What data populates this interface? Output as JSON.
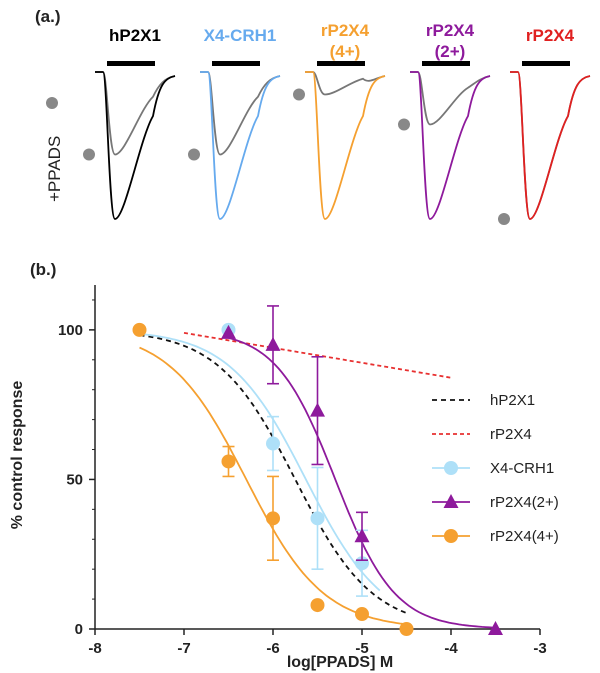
{
  "panel_a": {
    "label": "(a.)",
    "side_label": "+PPADS",
    "trace_colors": {
      "control": "#000000",
      "ppads": "#777777"
    },
    "traces": [
      {
        "title": "hP2X1",
        "color": "#000000",
        "peak": 0.98,
        "ppads_peak": 0.55
      },
      {
        "title": "X4-CRH1",
        "color": "#66aaee",
        "peak": 0.98,
        "ppads_peak": 0.55
      },
      {
        "title": "rP2X4\n(4+)",
        "title_lines": [
          "rP2X4",
          "(4+)"
        ],
        "color": "#f5a030",
        "peak": 0.98,
        "ppads_peak": 0.15
      },
      {
        "title": "rP2X4\n(2+)",
        "title_lines": [
          "rP2X4",
          "(2+)"
        ],
        "color": "#8e1a9c",
        "peak": 0.98,
        "ppads_peak": 0.35
      },
      {
        "title": "rP2X4",
        "color": "#e02020",
        "peak": 0.98,
        "ppads_peak": 0.98
      }
    ]
  },
  "chart_data": {
    "type": "scatter",
    "panel_label": "(b.)",
    "xlabel": "log[PPADS] M",
    "ylabel": "% control response",
    "xlim": [
      -8,
      -3
    ],
    "ylim": [
      0,
      115
    ],
    "x_ticks": [
      -8,
      -7,
      -6,
      -5,
      -4,
      -3
    ],
    "y_ticks": [
      0,
      50,
      100
    ],
    "grid": false,
    "legend_position": "right",
    "series": [
      {
        "name": "hP2X1",
        "color": "#111111",
        "style": "dashed",
        "marker": "none",
        "fit": {
          "top": 100,
          "bottom": 0,
          "log_ic50": -5.75,
          "hill": 1.0,
          "x_range": [
            -7.5,
            -4.5
          ]
        }
      },
      {
        "name": "rP2X4",
        "color": "#e83030",
        "style": "dotted",
        "marker": "none",
        "line": {
          "x": [
            -7,
            -4
          ],
          "y": [
            99,
            84
          ]
        }
      },
      {
        "name": "X4-CRH1",
        "color": "#aee0f8",
        "style": "solid",
        "marker": "circle",
        "x": [
          -6.5,
          -6,
          -5.5,
          -5
        ],
        "y": [
          100,
          62,
          37,
          22
        ],
        "err": [
          0,
          9,
          17,
          11
        ],
        "fit": {
          "top": 100,
          "bottom": 0,
          "log_ic50": -5.63,
          "hill": 1.0,
          "x_range": [
            -7.5,
            -4.8
          ]
        }
      },
      {
        "name": "rP2X4(2+)",
        "color": "#8e1a9c",
        "style": "solid",
        "marker": "triangle",
        "x": [
          -6.5,
          -6,
          -5.5,
          -5,
          -3.5
        ],
        "y": [
          99,
          95,
          73,
          31,
          0
        ],
        "err": [
          0,
          13,
          18,
          8,
          0
        ],
        "fit": {
          "top": 100,
          "bottom": 0,
          "log_ic50": -5.3,
          "hill": 1.3,
          "x_range": [
            -6.5,
            -3.5
          ]
        }
      },
      {
        "name": "rP2X4(4+)",
        "color": "#f5a030",
        "style": "solid",
        "marker": "circle",
        "x": [
          -7.5,
          -6.5,
          -6,
          -5.5,
          -5,
          -4.5
        ],
        "y": [
          100,
          56,
          37,
          8,
          5,
          0
        ],
        "err": [
          0,
          5,
          14,
          0,
          0,
          0
        ],
        "fit": {
          "top": 100,
          "bottom": 0,
          "log_ic50": -6.3,
          "hill": 1.0,
          "x_range": [
            -7.5,
            -4.5
          ]
        }
      }
    ]
  }
}
